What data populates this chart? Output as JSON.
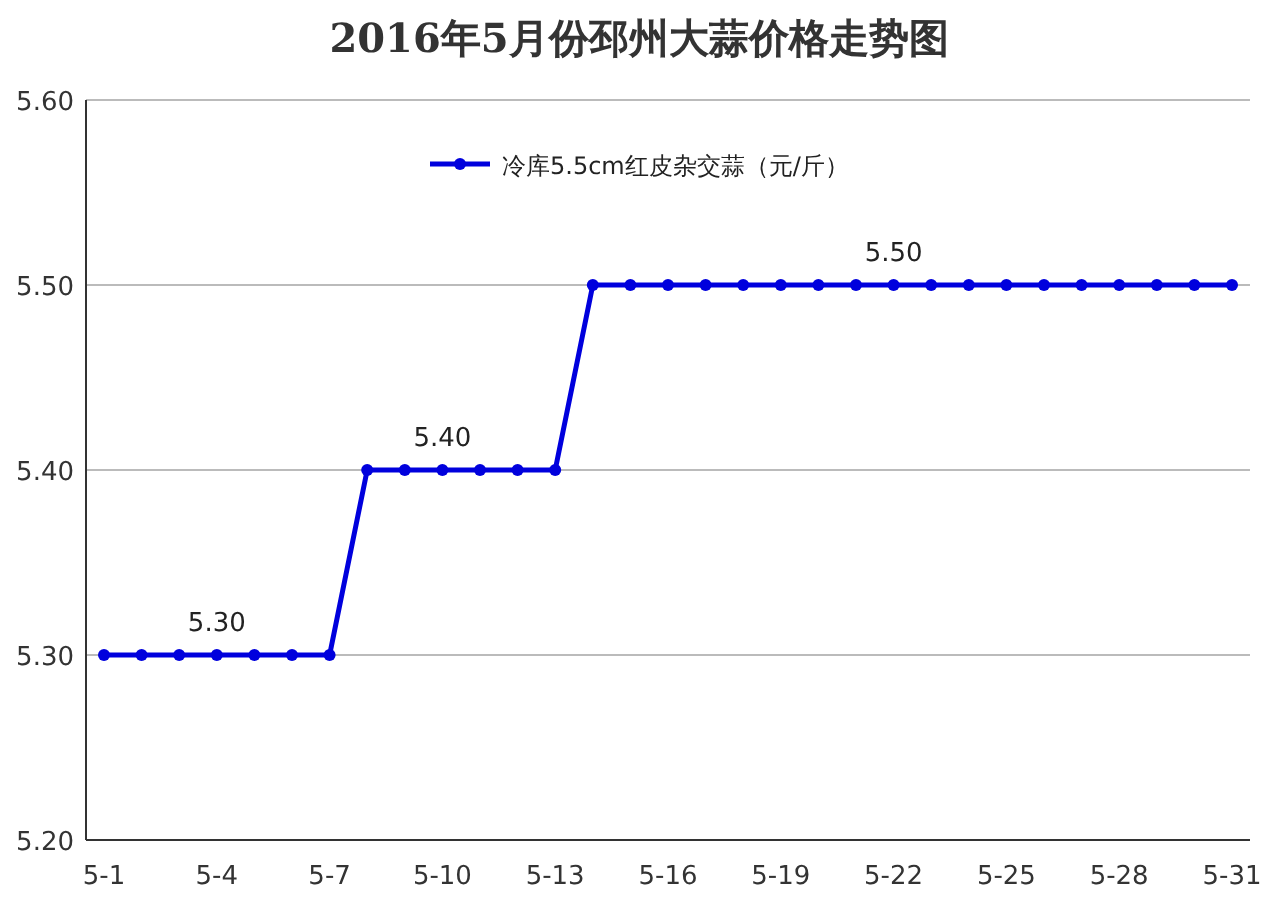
{
  "chart_data": {
    "type": "line",
    "title": "2016年5月份邳州大蒜价格走势图",
    "categories": [
      "5-1",
      null,
      null,
      "5-4",
      null,
      null,
      "5-7",
      null,
      null,
      "5-10",
      null,
      null,
      "5-13",
      null,
      null,
      "5-16",
      null,
      null,
      "5-19",
      null,
      null,
      "5-22",
      null,
      null,
      "5-25",
      null,
      null,
      "5-28",
      null,
      null,
      "5-31"
    ],
    "series": [
      {
        "name": "冷库5.5cm红皮杂交蒜（元/斤）",
        "color": "#0000dd",
        "values": [
          5.3,
          5.3,
          5.3,
          5.3,
          5.3,
          5.3,
          5.3,
          5.4,
          5.4,
          5.4,
          5.4,
          5.4,
          5.4,
          5.5,
          5.5,
          5.5,
          5.5,
          5.5,
          5.5,
          5.5,
          5.5,
          5.5,
          5.5,
          5.5,
          5.5,
          5.5,
          5.5,
          5.5,
          5.5,
          5.5,
          5.5
        ]
      }
    ],
    "ylim": [
      5.2,
      5.6
    ],
    "yticks": [
      {
        "value": 5.2,
        "label": "5.20"
      },
      {
        "value": 5.3,
        "label": "5.30"
      },
      {
        "value": 5.4,
        "label": "5.40"
      },
      {
        "value": 5.5,
        "label": "5.50"
      },
      {
        "value": 5.6,
        "label": "5.60"
      }
    ],
    "annotations": [
      {
        "text": "5.30",
        "x": "5-4",
        "y": 5.3
      },
      {
        "text": "5.40",
        "x": "5-10",
        "y": 5.4
      },
      {
        "text": "5.50",
        "x": "5-22",
        "y": 5.5
      }
    ],
    "grid": "y",
    "legend": "top",
    "marker": "circle",
    "line_style": "solid"
  }
}
